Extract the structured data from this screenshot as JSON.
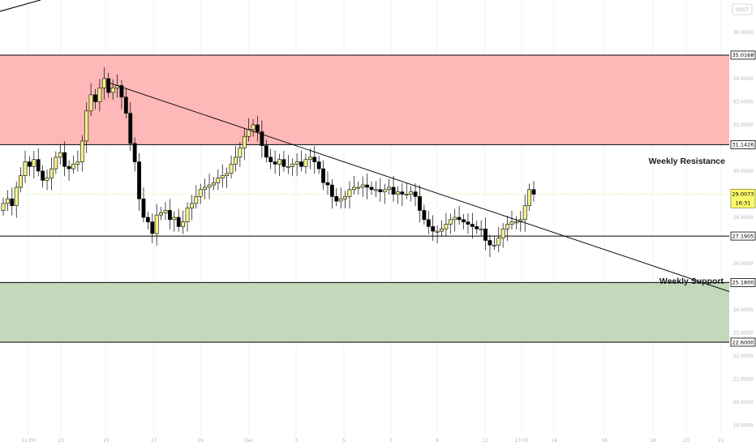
{
  "chart_data": {
    "type": "candlestick",
    "currency": "USDT",
    "ylim": [
      18.6,
      37.4
    ],
    "y_ticks": [
      "36.0000",
      "35.0168",
      "34.0000",
      "33.0000",
      "32.0000",
      "31.1426",
      "30.0000",
      "29.0073",
      "28.0000",
      "27.1905",
      "26.0000",
      "25.1800",
      "24.0000",
      "23.0000",
      "22.6000",
      "22.0000",
      "21.0000",
      "20.0000",
      "19.0000"
    ],
    "x_ticks": [
      "11:00",
      "23",
      "25",
      "27",
      "29",
      "Dec",
      "3",
      "5",
      "7",
      "9",
      "11",
      "13:00",
      "14",
      "16",
      "18",
      "20",
      "21"
    ],
    "zones": [
      {
        "name": "resistance-zone",
        "from": 31.1426,
        "to": 35.0168,
        "color": "#ff9a9a"
      },
      {
        "name": "support-zone",
        "from": 22.6,
        "to": 25.18,
        "color": "#a9c99e"
      }
    ],
    "levels": [
      {
        "name": "resistance-top",
        "value": "35.0168"
      },
      {
        "name": "resistance-bottom",
        "value": "31.1426"
      },
      {
        "name": "support-line",
        "value": "27.1905"
      },
      {
        "name": "support-top",
        "value": "25.1800"
      },
      {
        "name": "support-bottom",
        "value": "22.6000"
      }
    ],
    "annotations": {
      "resistance_label": "Weekly Resistance",
      "support_label": "Weekly Support"
    },
    "current_price": "29.0073",
    "countdown": "16:31",
    "trendline": {
      "start": [
        136,
        33.8
      ],
      "end": [
        932,
        24.4
      ]
    },
    "closes": [
      28.6,
      28.8,
      28.5,
      29.3,
      29.8,
      30.4,
      30.2,
      30.5,
      30.0,
      29.6,
      29.7,
      30.1,
      30.6,
      30.8,
      30.2,
      30.1,
      30.3,
      30.4,
      31.3,
      32.6,
      33.3,
      33.0,
      33.6,
      34.0,
      33.4,
      33.6,
      33.7,
      33.2,
      32.5,
      31.2,
      30.4,
      28.8,
      28.0,
      27.8,
      27.3,
      28.1,
      28.2,
      28.3,
      27.9,
      28.0,
      27.6,
      27.8,
      28.4,
      28.6,
      28.9,
      29.2,
      29.3,
      29.4,
      29.5,
      29.7,
      29.8,
      29.9,
      30.3,
      30.6,
      31.0,
      31.5,
      31.8,
      32.0,
      31.7,
      31.1,
      30.6,
      30.4,
      30.3,
      30.5,
      30.2,
      30.2,
      30.3,
      30.4,
      30.2,
      30.5,
      30.6,
      30.4,
      30.1,
      29.5,
      29.4,
      28.9,
      28.7,
      28.8,
      28.9,
      29.2,
      29.3,
      29.3,
      29.4,
      29.3,
      29.2,
      29.2,
      29.1,
      29.2,
      29.3,
      29.0,
      29.1,
      29.0,
      29.0,
      29.1,
      28.9,
      28.3,
      27.9,
      27.6,
      27.4,
      27.4,
      27.5,
      27.7,
      27.9,
      28.0,
      27.9,
      27.8,
      27.7,
      27.6,
      27.5,
      27.5,
      27.0,
      26.8,
      26.8,
      27.1,
      27.5,
      27.7,
      27.8,
      27.8,
      27.9,
      28.5,
      29.2,
      29.0
    ]
  }
}
